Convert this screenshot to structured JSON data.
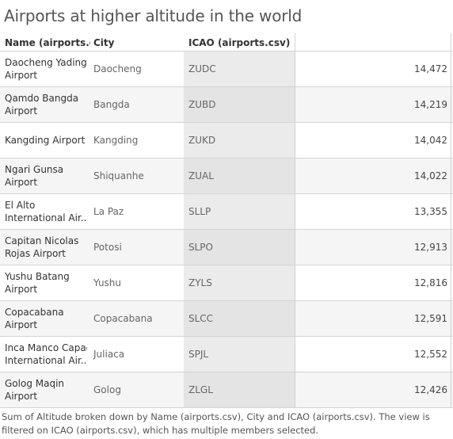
{
  "title": "Airports at higher altitude in the world",
  "table": {
    "headers": {
      "name": "Name (airports.c..",
      "city": "City",
      "icao": "ICAO (airports.csv)"
    },
    "rows": [
      {
        "name_line1": "Daocheng Yading",
        "name_line2": "Airport",
        "city": "Daocheng",
        "icao": "ZUDC",
        "value": "14,472"
      },
      {
        "name_line1": "Qamdo Bangda",
        "name_line2": "Airport",
        "city": "Bangda",
        "icao": "ZUBD",
        "value": "14,219"
      },
      {
        "name_line1": "Kangding Airport",
        "name_line2": "",
        "city": "Kangding",
        "icao": "ZUKD",
        "value": "14,042"
      },
      {
        "name_line1": "Ngari Gunsa",
        "name_line2": "Airport",
        "city": "Shiquanhe",
        "icao": "ZUAL",
        "value": "14,022"
      },
      {
        "name_line1": "El Alto",
        "name_line2": "International Air..",
        "city": "La Paz",
        "icao": "SLLP",
        "value": "13,355"
      },
      {
        "name_line1": "Capitan Nicolas",
        "name_line2": "Rojas Airport",
        "city": "Potosi",
        "icao": "SLPO",
        "value": "12,913"
      },
      {
        "name_line1": "Yushu Batang",
        "name_line2": "Airport",
        "city": "Yushu",
        "icao": "ZYLS",
        "value": "12,816"
      },
      {
        "name_line1": "Copacabana",
        "name_line2": "Airport",
        "city": "Copacabana",
        "icao": "SLCC",
        "value": "12,591"
      },
      {
        "name_line1": "Inca Manco Capac",
        "name_line2": "International Air..",
        "city": "Juliaca",
        "icao": "SPJL",
        "value": "12,552"
      },
      {
        "name_line1": "Golog Maqin",
        "name_line2": "Airport",
        "city": "Golog",
        "icao": "ZLGL",
        "value": "12,426"
      }
    ]
  },
  "caption": "Sum of Altitude broken down by Name (airports.csv), City and ICAO (airports.csv).  The view is filtered on ICAO (airports.csv), which has multiple members selected."
}
